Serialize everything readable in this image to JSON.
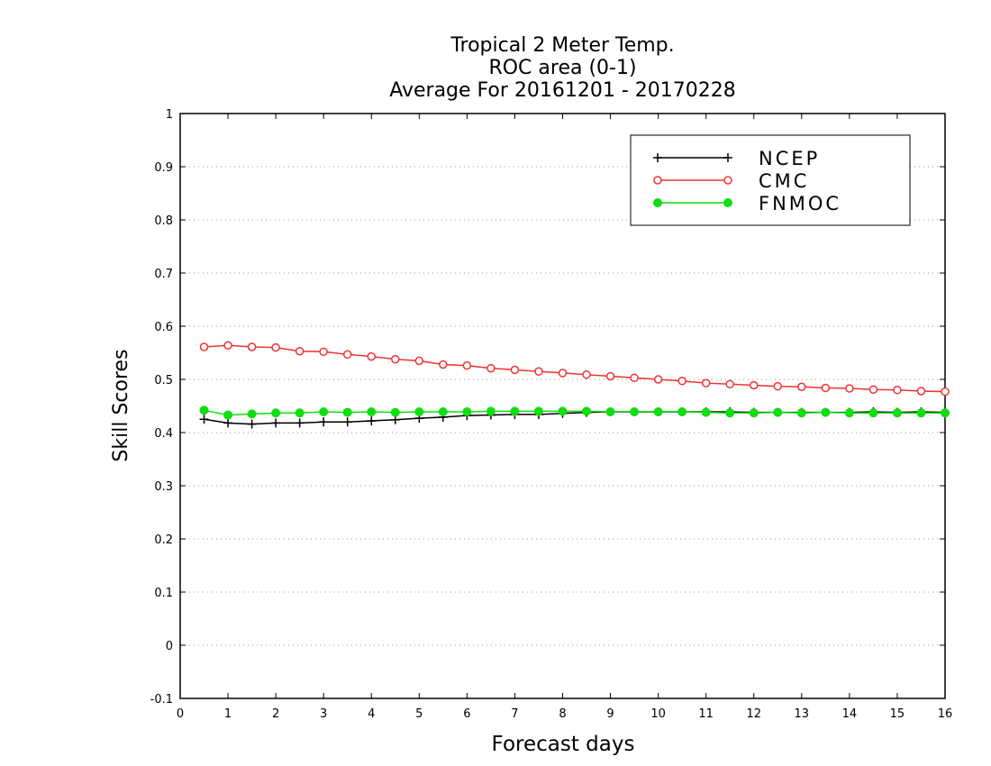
{
  "chart_data": {
    "type": "line",
    "title": [
      "Tropical 2 Meter Temp.",
      "ROC area (0-1)",
      "Average For 20161201 - 20170228"
    ],
    "xlabel": "Forecast days",
    "ylabel": "Skill Scores",
    "xlim": [
      0,
      16
    ],
    "ylim": [
      -0.1,
      1
    ],
    "xticks": [
      "0",
      "1",
      "2",
      "3",
      "4",
      "5",
      "6",
      "7",
      "8",
      "9",
      "10",
      "11",
      "12",
      "13",
      "14",
      "15",
      "16"
    ],
    "yticks": [
      "1",
      "0.9",
      "0.8",
      "0.7",
      "0.6",
      "0.5",
      "0.4",
      "0.3",
      "0.2",
      "0.1",
      "0",
      "-0.1"
    ],
    "grid": "horizontal-dotted",
    "legend_position": "top-right",
    "x": [
      0.5,
      1,
      1.5,
      2,
      2.5,
      3,
      3.5,
      4,
      4.5,
      5,
      5.5,
      6,
      6.5,
      7,
      7.5,
      8,
      8.5,
      9,
      9.5,
      10,
      10.5,
      11,
      11.5,
      12,
      12.5,
      13,
      13.5,
      14,
      14.5,
      15,
      15.5,
      16
    ],
    "series": [
      {
        "name": "NCEP",
        "color": "#000000",
        "marker": "plus",
        "values": [
          0.425,
          0.418,
          0.416,
          0.418,
          0.418,
          0.42,
          0.42,
          0.422,
          0.424,
          0.427,
          0.429,
          0.432,
          0.433,
          0.434,
          0.434,
          0.436,
          0.438,
          0.439,
          0.439,
          0.439,
          0.439,
          0.439,
          0.439,
          0.438,
          0.438,
          0.438,
          0.438,
          0.438,
          0.439,
          0.438,
          0.439,
          0.438
        ]
      },
      {
        "name": "CMC",
        "color": "#ee3333",
        "marker": "open-circle",
        "values": [
          0.561,
          0.564,
          0.561,
          0.56,
          0.553,
          0.552,
          0.547,
          0.543,
          0.538,
          0.535,
          0.528,
          0.526,
          0.521,
          0.518,
          0.515,
          0.512,
          0.509,
          0.506,
          0.503,
          0.5,
          0.497,
          0.493,
          0.491,
          0.489,
          0.487,
          0.486,
          0.484,
          0.483,
          0.481,
          0.48,
          0.478,
          0.477
        ]
      },
      {
        "name": "FNMOC",
        "color": "#11dd11",
        "marker": "filled-circle",
        "values": [
          0.442,
          0.433,
          0.435,
          0.437,
          0.437,
          0.439,
          0.438,
          0.439,
          0.438,
          0.439,
          0.439,
          0.439,
          0.44,
          0.44,
          0.44,
          0.44,
          0.44,
          0.439,
          0.439,
          0.439,
          0.439,
          0.438,
          0.437,
          0.437,
          0.438,
          0.437,
          0.438,
          0.437,
          0.437,
          0.437,
          0.437,
          0.437
        ]
      }
    ]
  }
}
